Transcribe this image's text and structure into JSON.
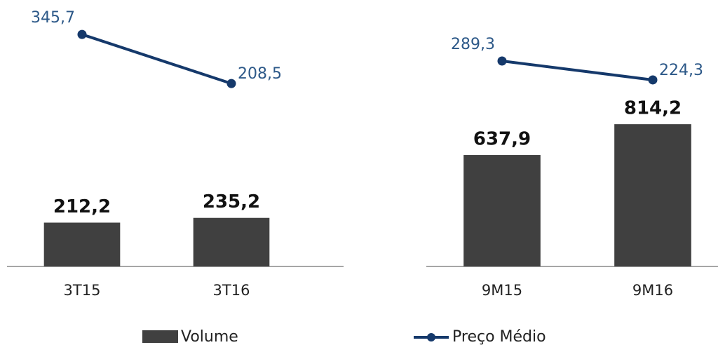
{
  "chart_data": [
    {
      "type": "bar",
      "categories": [
        "3T15",
        "3T16"
      ],
      "series": [
        {
          "name": "Volume",
          "color": "#404040",
          "values": [
            212.2,
            235.2
          ],
          "value_labels": [
            "212,2",
            "235,2"
          ]
        },
        {
          "name": "Preço Médio",
          "color": "#15396b",
          "axis": "y2",
          "values": [
            345.7,
            208.5
          ],
          "value_labels": [
            "345,7",
            "208,5"
          ]
        }
      ],
      "ylim": [
        0,
        1290
      ],
      "y2lim": [
        -303,
        442
      ]
    },
    {
      "type": "bar",
      "categories": [
        "9M15",
        "9M16"
      ],
      "series": [
        {
          "name": "Volume",
          "color": "#404040",
          "values": [
            637.9,
            814.2
          ],
          "value_labels": [
            "637,9",
            "814,2"
          ]
        },
        {
          "name": "Preço Médio",
          "color": "#15396b",
          "axis": "y2",
          "values": [
            289.3,
            224.3
          ],
          "value_labels": [
            "289,3",
            "224,3"
          ]
        }
      ],
      "ylim": [
        0,
        1525
      ],
      "y2lim": [
        -417,
        499
      ]
    }
  ]
}
